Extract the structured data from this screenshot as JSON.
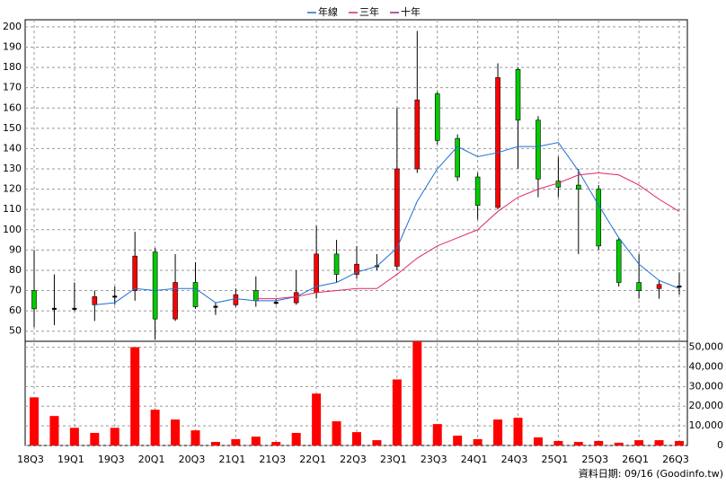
{
  "chart_data": [
    {
      "type": "candlestick",
      "categories": [
        "18Q3",
        null,
        "19Q1",
        null,
        "19Q3",
        null,
        "20Q1",
        null,
        "20Q3",
        null,
        "21Q1",
        null,
        "21Q3",
        null,
        "22Q1",
        null,
        "22Q3",
        null,
        "23Q1",
        null,
        "23Q3",
        null,
        "24Q1",
        null,
        "24Q3",
        null,
        "25Q1",
        null,
        "25Q3",
        null,
        "26Q1",
        null,
        "26Q3"
      ],
      "open": [
        70,
        61,
        61,
        63,
        67,
        70,
        89,
        56,
        74,
        62,
        63,
        70,
        64,
        64,
        69,
        88,
        78,
        82,
        82,
        130,
        167,
        145,
        126,
        111,
        179,
        154,
        124,
        122,
        120,
        95,
        74,
        71,
        72
      ],
      "high": [
        90,
        78,
        74,
        70,
        72,
        99,
        91,
        88,
        84,
        64,
        71,
        77,
        66,
        80,
        102,
        95,
        92,
        88,
        160,
        198,
        168,
        147,
        128,
        182,
        180,
        156,
        136,
        130,
        122,
        96,
        88,
        75,
        79
      ],
      "low": [
        52,
        53,
        60,
        55,
        63,
        65,
        46,
        55,
        61,
        58,
        62,
        62,
        63,
        63,
        66,
        74,
        76,
        80,
        80,
        128,
        142,
        124,
        105,
        110,
        130,
        116,
        116,
        88,
        90,
        72,
        66,
        66,
        68
      ],
      "close": [
        61,
        61,
        61,
        67,
        67,
        87,
        56,
        74,
        62,
        62,
        68,
        65,
        64,
        69,
        88,
        78,
        83,
        82,
        130,
        164,
        144,
        126,
        112,
        175,
        154,
        125,
        121,
        120,
        92,
        74,
        70,
        73,
        72
      ],
      "up_color": "#ff0000",
      "down_color": "#00cc00",
      "series": [
        {
          "name": "年線",
          "color": "#1f6fd1",
          "values": [
            null,
            null,
            null,
            63,
            64,
            71,
            70,
            71,
            71,
            64,
            66,
            65,
            65,
            67,
            72,
            74,
            79,
            82,
            91,
            114,
            130,
            141,
            136,
            138,
            141,
            141,
            143,
            129,
            112,
            96,
            83,
            75,
            71
          ]
        },
        {
          "name": "三年",
          "color": "#e0246a",
          "values": [
            null,
            null,
            null,
            null,
            null,
            null,
            null,
            null,
            null,
            null,
            null,
            66,
            66,
            67,
            69,
            70,
            71,
            71,
            78,
            86,
            92,
            96,
            100,
            109,
            116,
            120,
            123,
            127,
            128,
            127,
            122,
            115,
            109
          ]
        },
        {
          "name": "十年",
          "color": "#a0208a",
          "values": [
            null,
            null,
            null,
            null,
            null,
            null,
            null,
            null,
            null,
            null,
            null,
            null,
            null,
            null,
            null,
            null,
            null,
            null,
            null,
            null,
            null,
            null,
            null,
            null,
            null,
            null,
            null,
            null,
            null,
            null,
            null,
            null,
            null
          ]
        }
      ],
      "ylim": [
        45,
        203.5
      ],
      "yticks": [
        50,
        60,
        70,
        80,
        90,
        100,
        110,
        120,
        130,
        140,
        150,
        160,
        170,
        180,
        190,
        200
      ],
      "grid": true
    },
    {
      "type": "bar",
      "values": [
        24500,
        15000,
        9000,
        6400,
        9000,
        50000,
        18200,
        13200,
        7700,
        1800,
        3200,
        4500,
        1800,
        6400,
        26400,
        12300,
        6800,
        2700,
        33600,
        53000,
        10900,
        5000,
        3200,
        13200,
        14100,
        4100,
        2300,
        1800,
        2300,
        1400,
        2700,
        2700,
        2300
      ],
      "color": "#ff0000",
      "ylim": [
        0,
        53000
      ],
      "yticks": [
        0,
        {
          "value": 10000,
          "label": "10,000"
        },
        {
          "value": 20000,
          "label": "20,000"
        },
        {
          "value": 30000,
          "label": "30,000"
        },
        {
          "value": 40000,
          "label": "40,000"
        },
        {
          "value": 50000,
          "label": "50,000"
        }
      ],
      "grid": true
    }
  ],
  "footer": "資料日期: 09/16 (Goodinfo.tw)"
}
